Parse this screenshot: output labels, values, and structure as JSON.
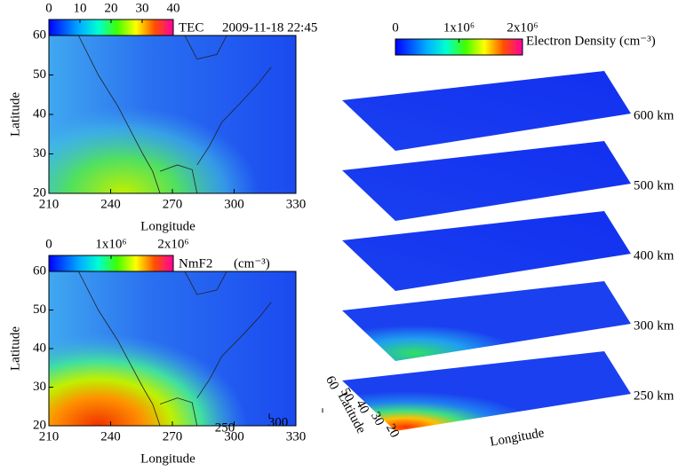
{
  "chart_data": [
    {
      "type": "map",
      "title": "TEC",
      "subtitle": "2009-11-18  22:45",
      "xlabel": "Longitude",
      "ylabel": "Latitude",
      "xlim": [
        210,
        330
      ],
      "xticks": [
        210,
        240,
        270,
        300,
        330
      ],
      "ylim": [
        20,
        60
      ],
      "yticks": [
        20,
        30,
        40,
        50,
        60
      ],
      "colorbar": {
        "lim": [
          0,
          40
        ],
        "ticks": [
          0,
          10,
          20,
          30,
          40
        ]
      }
    },
    {
      "type": "map",
      "title": "NmF2",
      "subtitle": "(cm⁻³)",
      "xlabel": "Longitude",
      "ylabel": "Latitude",
      "xlim": [
        210,
        330
      ],
      "xticks": [
        210,
        240,
        270,
        300,
        330
      ],
      "ylim": [
        20,
        60
      ],
      "yticks": [
        20,
        30,
        40,
        50,
        60
      ],
      "colorbar": {
        "lim": [
          0,
          2000000
        ],
        "ticks": [
          0,
          {
            "value": 1000000,
            "label": "1x10⁶"
          },
          {
            "value": 2000000,
            "label": "2x10⁶"
          }
        ]
      }
    },
    {
      "type": "map3d",
      "title": "Electron Density (cm⁻³)",
      "xlabel": "Longitude",
      "ylabel": "Latitude",
      "xlim": [
        210,
        330
      ],
      "xticks": [
        250,
        300
      ],
      "ylim": [
        20,
        60
      ],
      "yticks": [
        20,
        30,
        40,
        50,
        60
      ],
      "levels": [
        "600 km",
        "500 km",
        "400 km",
        "300 km",
        "250 km"
      ],
      "colorbar": {
        "lim": [
          0,
          2000000
        ],
        "ticks": [
          0,
          {
            "value": 1000000,
            "label": "1x10⁶"
          },
          {
            "value": 2000000,
            "label": "2x10⁶"
          }
        ]
      }
    }
  ]
}
